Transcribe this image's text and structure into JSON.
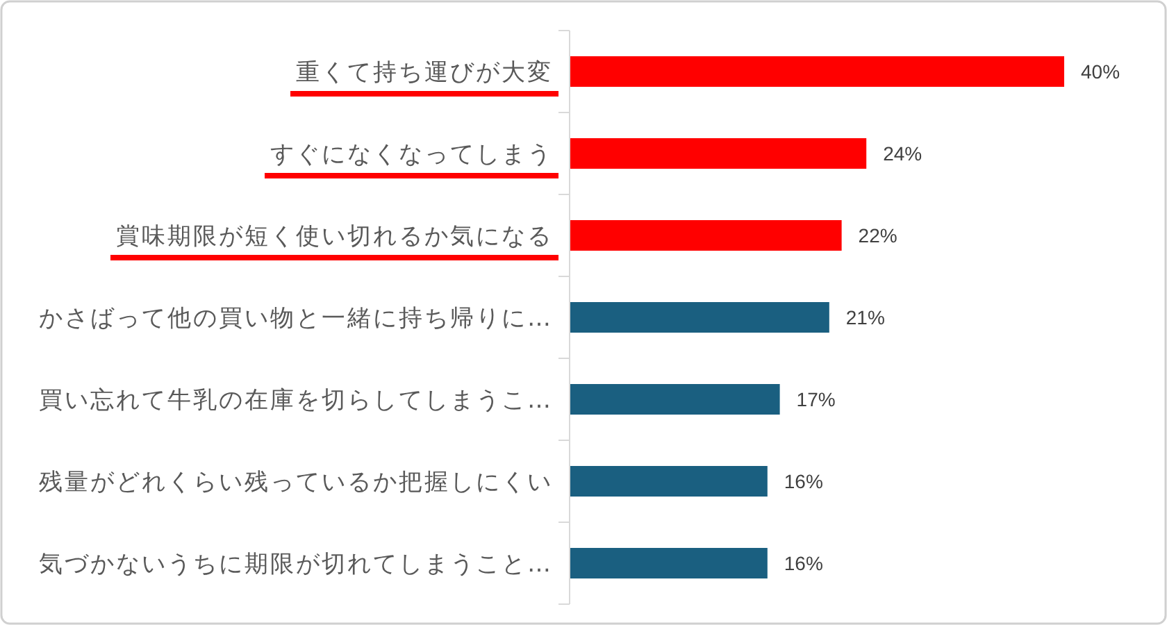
{
  "chart_data": {
    "type": "bar",
    "orientation": "horizontal",
    "categories": [
      "重くて持ち運びが大変",
      "すぐになくなってしまう",
      "賞味期限が短く使い切れるか気になる",
      "かさばって他の買い物と一緒に持ち帰りに…",
      "買い忘れて牛乳の在庫を切らしてしまうこ…",
      "残量がどれくらい残っているか把握しにくい",
      "気づかないうちに期限が切れてしまうこと…"
    ],
    "values": [
      40,
      24,
      22,
      21,
      17,
      16,
      16
    ],
    "value_labels": [
      "40%",
      "24%",
      "22%",
      "21%",
      "17%",
      "16%",
      "16%"
    ],
    "colors": [
      "#ff0000",
      "#ff0000",
      "#ff0000",
      "#1a5f80",
      "#1a5f80",
      "#1a5f80",
      "#1a5f80"
    ]
  }
}
